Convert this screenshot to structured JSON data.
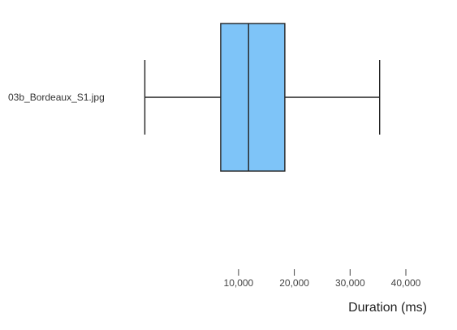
{
  "chart_data": {
    "type": "box",
    "orientation": "horizontal",
    "categories": [
      "03b_Bordeaux_S1.jpg"
    ],
    "boxes": [
      {
        "category": "03b_Bordeaux_S1.jpg",
        "min": -6800,
        "q1": 6800,
        "median": 11800,
        "q3": 18300,
        "max": 35300
      }
    ],
    "xlabel": "Duration (ms)",
    "xticks": [
      10000,
      20000,
      30000,
      40000
    ],
    "xtick_labels": [
      "10,000",
      "20,000",
      "30,000",
      "40,000"
    ],
    "xlim": [
      -20400,
      40000
    ],
    "grid": false,
    "legend": "none",
    "colors": {
      "box_fill": "#7ec4f8",
      "stroke": "#222222",
      "axis": "#444444"
    }
  }
}
